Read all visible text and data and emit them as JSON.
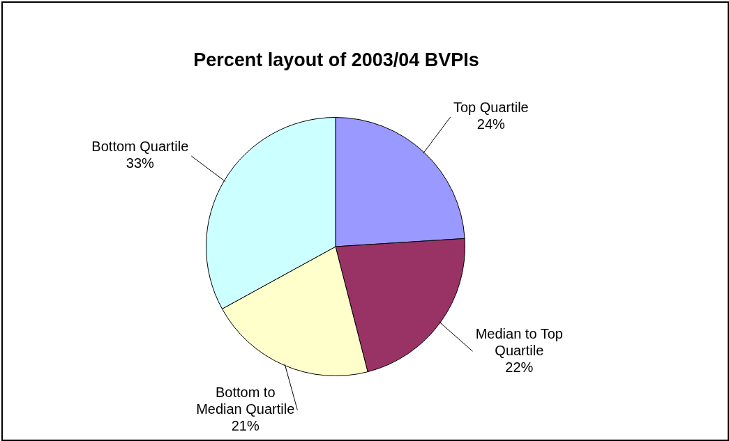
{
  "chart_data": {
    "type": "pie",
    "title": "Percent layout of 2003/04 BVPIs",
    "categories": [
      "Top Quartile",
      "Median to Top Quartile",
      "Bottom to Median Quartile",
      "Bottom Quartile"
    ],
    "values": [
      24,
      22,
      21,
      33
    ],
    "colors": [
      "#9999ff",
      "#993366",
      "#ffffcc",
      "#ccffff"
    ],
    "value_labels": [
      "24%",
      "22%",
      "21%",
      "33%"
    ],
    "legend": false
  }
}
